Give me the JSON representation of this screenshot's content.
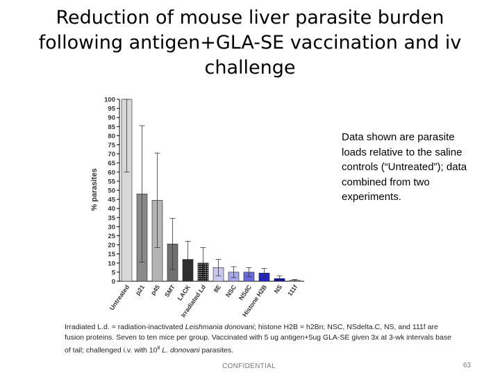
{
  "slide": {
    "title_line1": "Reduction of mouse liver parasite burden",
    "title_line2": "following antigen+GLA-SE vaccination and iv",
    "title_line3": "challenge",
    "note": "Data shown are parasite loads relative to the saline controls (“Untreated”); data combined from two experiments.",
    "footnote_p1": "Irradiated L.d. = radiation-inactivated ",
    "footnote_species": "Leishmania donovani",
    "footnote_p2": "; histone H2B = h2Bn; NSC, NSdelta.C, NS, and 111f are fusion proteins. Seven to ten mice per group.  Vaccinated with 5 ug antigen+5ug GLA-SE given 3x at 3-wk intervals  base of tail; challenged i.v. with 10",
    "footnote_exp": "8",
    "footnote_p3": " ",
    "footnote_species2": "L. donovani",
    "footnote_p4": " parasites.",
    "footer_label": "CONFIDENTIAL",
    "page_number": "63"
  },
  "chart_data": {
    "type": "bar",
    "ylabel": "% parasites",
    "ylim": [
      0,
      100
    ],
    "yticks": [
      0,
      5,
      10,
      15,
      20,
      25,
      30,
      35,
      40,
      45,
      50,
      55,
      60,
      65,
      70,
      75,
      80,
      85,
      90,
      95,
      100
    ],
    "categories": [
      "Untreated",
      "p21",
      "p45",
      "SMT",
      "LACK",
      "Irradiated Ld",
      "8E",
      "NSC",
      "NSdC",
      "Histone H2B",
      "NS",
      "111f"
    ],
    "values": [
      100,
      48,
      44.5,
      20.5,
      12,
      10,
      7.5,
      5,
      5,
      4.5,
      1.5,
      0.5
    ],
    "error": [
      40,
      37.5,
      26,
      14,
      10,
      8.5,
      4.5,
      3,
      2.5,
      2.5,
      1.5,
      0.5
    ],
    "colors": [
      "#d8d8d8",
      "#8a8a8a",
      "#b4b4b4",
      "#707070",
      "#303030",
      "#202020",
      "#c8c8f0",
      "#a8a8ec",
      "#6b6be0",
      "#2323cc",
      "#0a0ab0",
      "#a0a0a0"
    ],
    "patterned": [
      false,
      false,
      false,
      false,
      false,
      true,
      false,
      false,
      false,
      false,
      false,
      false
    ]
  }
}
